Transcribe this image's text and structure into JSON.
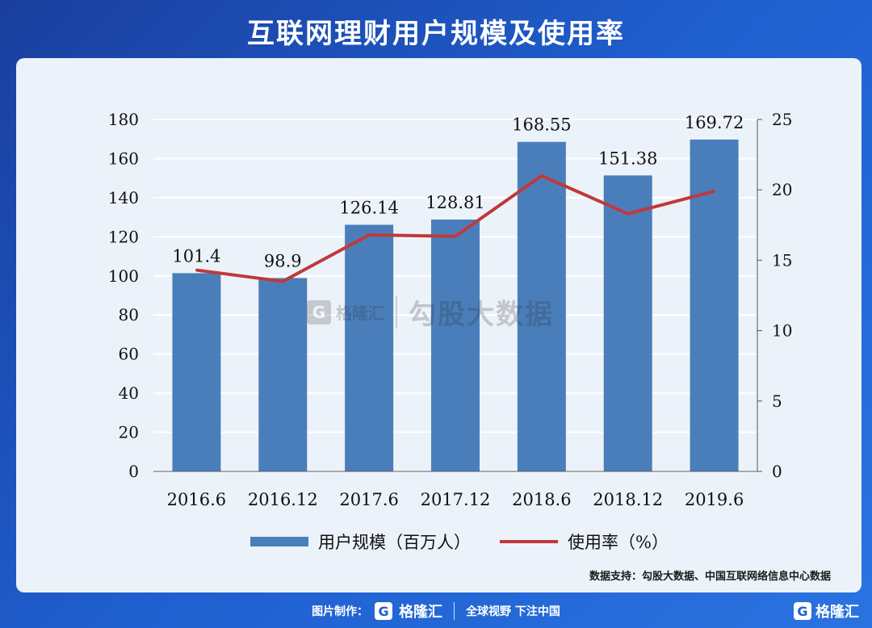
{
  "title": "互联网理财用户规模及使用率",
  "source": "数据支持：勾股大数据、中国互联网络信息中心数据",
  "watermark": {
    "logo": "格隆汇",
    "badge": "G",
    "text": "勾股大数据"
  },
  "footer": {
    "label": "图片制作：",
    "badge": "G",
    "brand": "格隆汇",
    "slogan": "全球视野 下注中国"
  },
  "corner_logo": {
    "badge": "G",
    "brand": "格隆汇"
  },
  "chart_data": {
    "type": "bar",
    "categories": [
      "2016.6",
      "2016.12",
      "2017.6",
      "2017.12",
      "2018.6",
      "2018.12",
      "2019.6"
    ],
    "series": [
      {
        "name": "用户规模（百万人）",
        "type": "bar",
        "axis": "left",
        "values": [
          101.4,
          98.9,
          126.14,
          128.81,
          168.55,
          151.38,
          169.72
        ],
        "labels": [
          "101.4",
          "98.9",
          "126.14",
          "128.81",
          "168.55",
          "151.38",
          "169.72"
        ]
      },
      {
        "name": "使用率（%）",
        "type": "line",
        "axis": "right",
        "values": [
          14.3,
          13.5,
          16.8,
          16.7,
          21.0,
          18.3,
          19.9
        ]
      }
    ],
    "y_left": {
      "min": 0,
      "max": 180,
      "ticks": [
        "0",
        "20",
        "40",
        "60",
        "80",
        "100",
        "120",
        "140",
        "160",
        "180"
      ]
    },
    "y_right": {
      "min": 0,
      "max": 25,
      "ticks": [
        "0",
        "5",
        "10",
        "15",
        "20",
        "25"
      ]
    },
    "grid": true,
    "legend_position": "bottom",
    "colors": {
      "bar": "#4a7ebb",
      "line": "#c0393b",
      "grid": "#ffffff",
      "axis": "#555555",
      "text": "#111111"
    }
  }
}
